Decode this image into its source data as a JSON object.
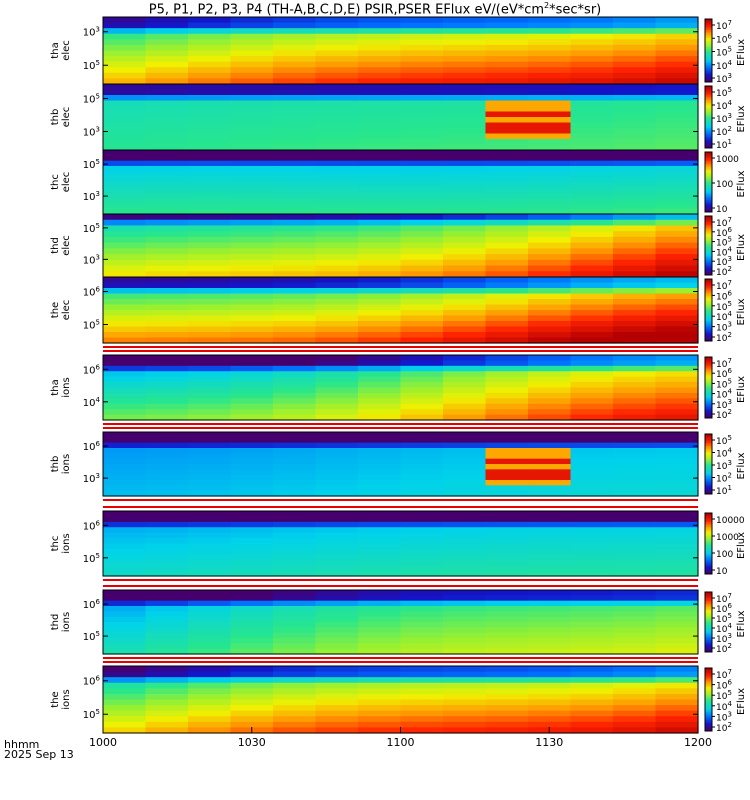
{
  "title_main": "P5, P1, P2, P3, P4 (TH-A,B,C,D,E) PSIR,PSER EFlux eV/(eV*cm",
  "title_sup": "2",
  "title_end": "*sec*sr)",
  "footer": {
    "line1": "hhmm",
    "line2": "2025 Sep 13"
  },
  "chart_data": {
    "type": "heatmap",
    "title": "P5, P1, P2, P3, P4 (TH-A,B,C,D,E) PSIR,PSER EFlux eV/(eV*cm2*sec*sr)",
    "x_axis": {
      "range": [
        1000,
        1200
      ],
      "ticks": [
        1000,
        1030,
        1100,
        1130,
        1200
      ]
    },
    "colorbar_label": "EFlux",
    "panels": [
      {
        "label1": "tha",
        "label2": "elec",
        "yticks": [
          "10^3",
          "10^5"
        ],
        "cbar_ticks": [
          "10^3",
          "10^4",
          "10^5",
          "10^6",
          "10^7"
        ]
      },
      {
        "label1": "thb",
        "label2": "elec",
        "yticks": [
          "10^5",
          "10^3"
        ],
        "cbar_ticks": [
          "10^1",
          "10^2",
          "10^3",
          "10^4",
          "10^5"
        ]
      },
      {
        "label1": "thc",
        "label2": "elec",
        "yticks": [
          "10^5",
          "10^3"
        ],
        "cbar_ticks": [
          "10",
          "100",
          "1000"
        ]
      },
      {
        "label1": "thd",
        "label2": "elec",
        "yticks": [
          "10^5",
          "10^3"
        ],
        "cbar_ticks": [
          "10^2",
          "10^3",
          "10^4",
          "10^5",
          "10^6",
          "10^7"
        ]
      },
      {
        "label1": "the",
        "label2": "elec",
        "yticks": [
          "10^6",
          "10^5"
        ],
        "cbar_ticks": [
          "10^2",
          "10^3",
          "10^4",
          "10^5",
          "10^6",
          "10^7"
        ]
      },
      {
        "label1": "tha",
        "label2": "ions",
        "yticks": [
          "10^6",
          "10^4"
        ],
        "cbar_ticks": [
          "10^2",
          "10^3",
          "10^4",
          "10^5",
          "10^6",
          "10^7"
        ]
      },
      {
        "label1": "thb",
        "label2": "ions",
        "yticks": [
          "10^6",
          "10^3"
        ],
        "cbar_ticks": [
          "10^1",
          "10^2",
          "10^3",
          "10^4",
          "10^5"
        ]
      },
      {
        "label1": "thc",
        "label2": "ions",
        "yticks": [
          "10^6",
          "10^5"
        ],
        "cbar_ticks": [
          "10",
          "100",
          "1000",
          "10000"
        ]
      },
      {
        "label1": "thd",
        "label2": "ions",
        "yticks": [
          "10^6",
          "10^5"
        ],
        "cbar_ticks": [
          "10^2",
          "10^3",
          "10^4",
          "10^5",
          "10^6",
          "10^7"
        ]
      },
      {
        "label1": "the",
        "label2": "ions",
        "yticks": [
          "10^6",
          "10^5"
        ],
        "cbar_ticks": [
          "10^2",
          "10^3",
          "10^4",
          "10^5",
          "10^6",
          "10^7"
        ]
      }
    ]
  }
}
